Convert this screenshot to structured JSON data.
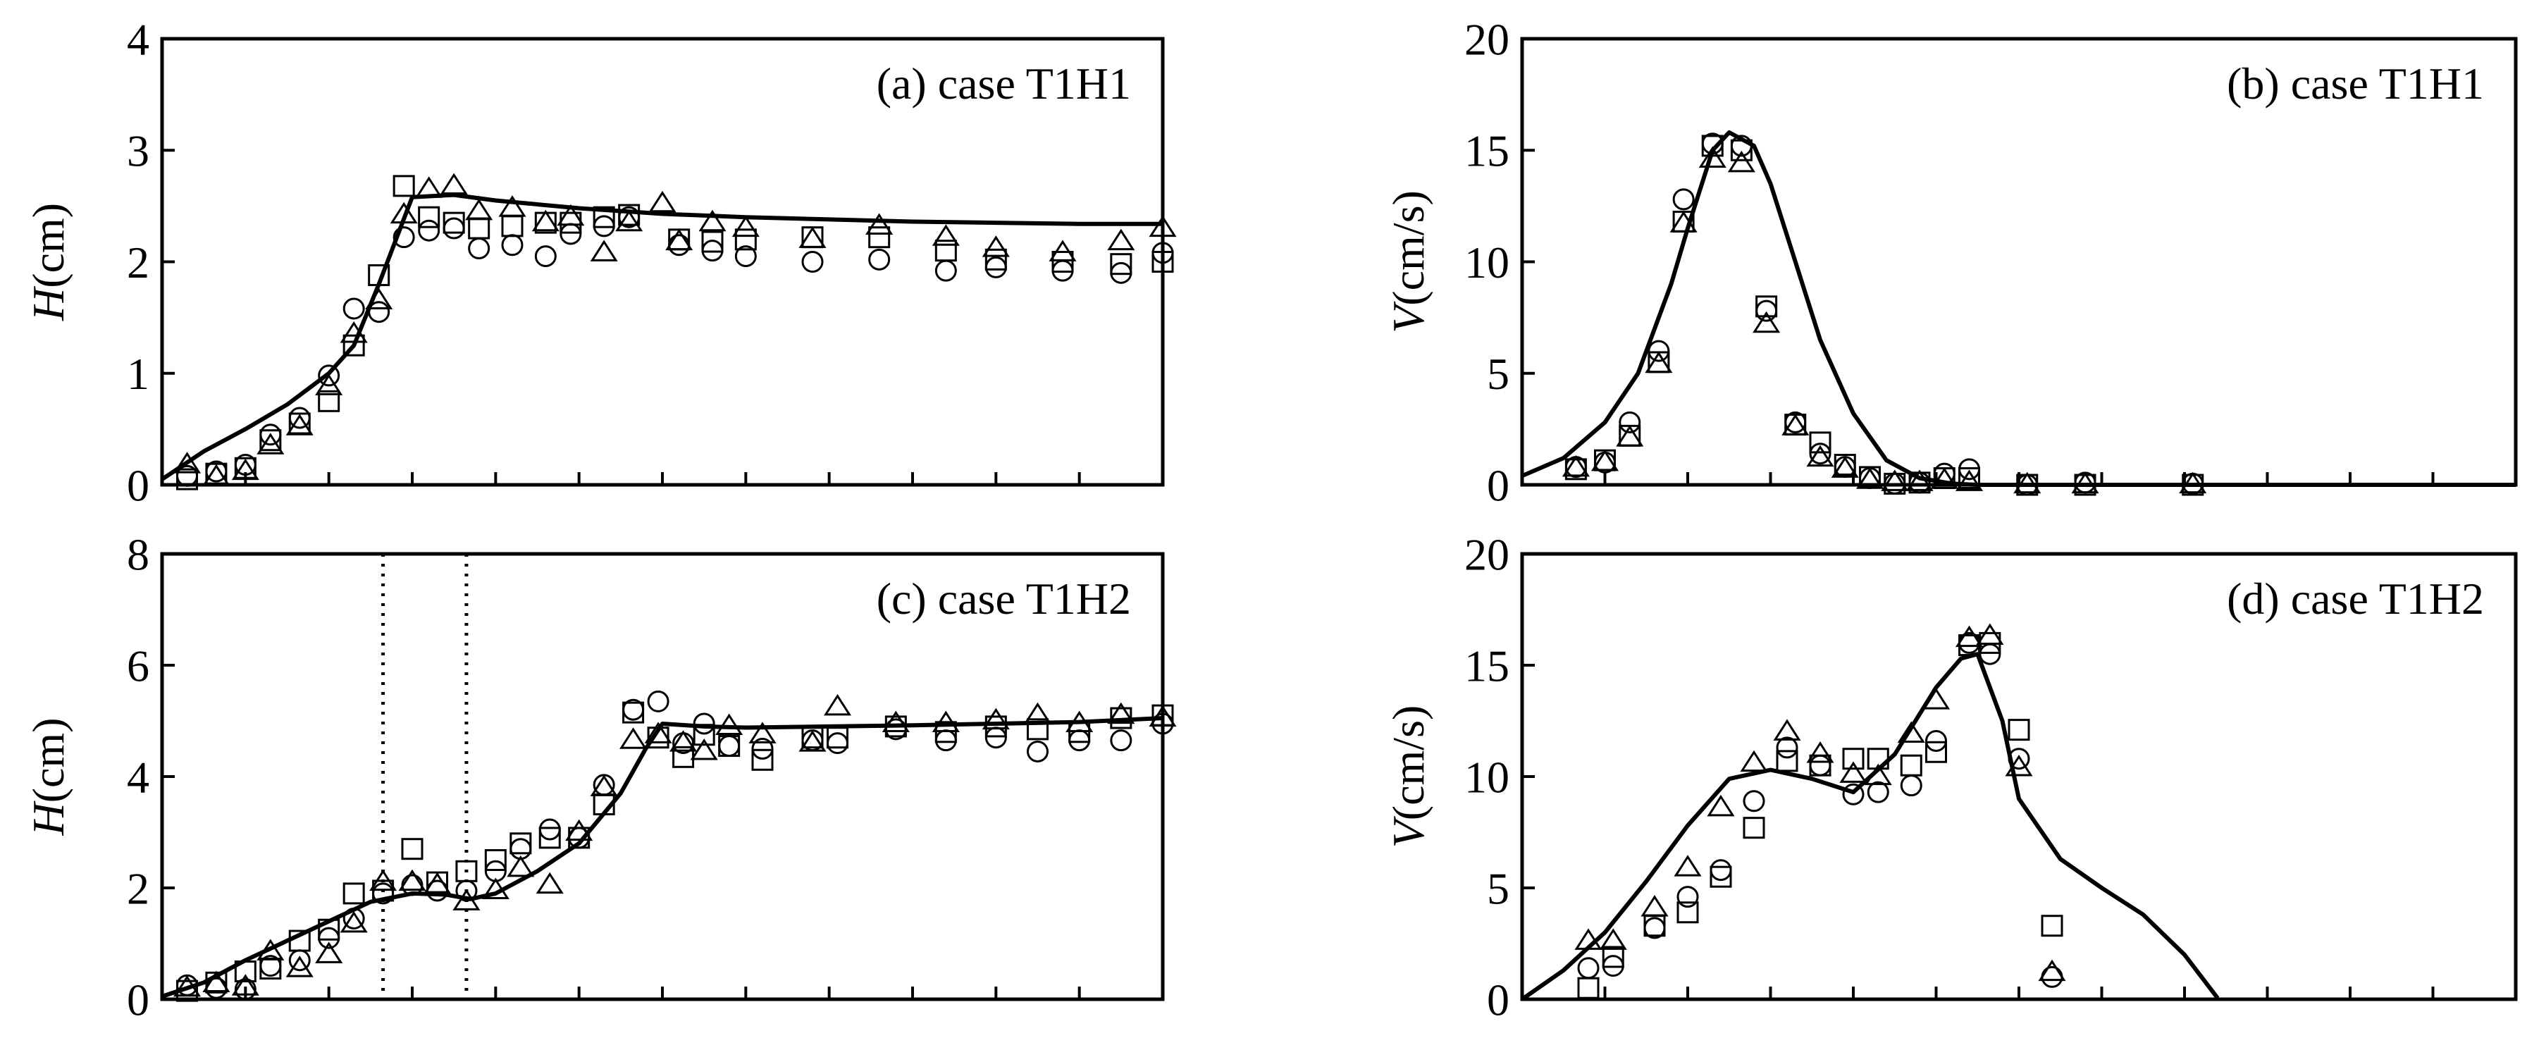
{
  "chart_data": [
    {
      "type": "scatter",
      "title": "(a) case T1H1",
      "ylabel_var": "H",
      "ylabel_unit": "(cm)",
      "xlim": [
        0,
        12
      ],
      "ylim": [
        0,
        4
      ],
      "xticks": [
        0,
        1,
        2,
        3,
        4,
        5,
        6,
        7,
        8,
        9,
        10,
        11,
        12
      ],
      "yticks": [
        0,
        1,
        2,
        3,
        4
      ],
      "ytick_labels": [
        "0",
        "1",
        "2",
        "3",
        "4"
      ],
      "grid": false,
      "series": [
        {
          "marker": "line",
          "x": [
            0,
            0.5,
            1,
            1.5,
            2,
            2.3,
            2.6,
            3.0,
            3.5,
            4,
            5,
            6,
            7,
            8,
            9,
            10,
            11,
            12
          ],
          "y": [
            0.05,
            0.3,
            0.5,
            0.72,
            1.0,
            1.25,
            1.8,
            2.58,
            2.6,
            2.55,
            2.48,
            2.43,
            2.4,
            2.38,
            2.36,
            2.35,
            2.34,
            2.34
          ]
        },
        {
          "marker": "circle",
          "x": [
            0.3,
            0.65,
            1.0,
            1.3,
            1.65,
            2.0,
            2.3,
            2.6,
            2.9,
            3.2,
            3.5,
            3.8,
            4.2,
            4.6,
            4.9,
            5.3,
            5.6,
            6.2,
            6.6,
            7.0,
            7.8,
            8.6,
            9.4,
            10.0,
            10.8,
            11.5,
            12.0
          ],
          "y": [
            0.08,
            0.12,
            0.18,
            0.45,
            0.6,
            0.98,
            1.58,
            1.55,
            2.22,
            2.28,
            2.3,
            2.12,
            2.15,
            2.05,
            2.25,
            2.32,
            2.4,
            2.15,
            2.1,
            2.05,
            2.0,
            2.02,
            1.92,
            1.95,
            1.92,
            1.9,
            2.08
          ]
        },
        {
          "marker": "square",
          "x": [
            0.3,
            0.65,
            1.0,
            1.3,
            1.65,
            2.0,
            2.3,
            2.6,
            2.9,
            3.2,
            3.5,
            3.8,
            4.2,
            4.6,
            4.9,
            5.3,
            5.6,
            6.2,
            6.6,
            7.0,
            7.8,
            8.6,
            9.4,
            10.0,
            10.8,
            11.5,
            12.0
          ],
          "y": [
            0.05,
            0.1,
            0.15,
            0.4,
            0.55,
            0.75,
            1.25,
            1.88,
            2.68,
            2.4,
            2.35,
            2.3,
            2.32,
            2.35,
            2.35,
            2.4,
            2.42,
            2.2,
            2.18,
            2.2,
            2.22,
            2.22,
            2.1,
            2.02,
            2.0,
            1.98,
            2.0
          ]
        },
        {
          "marker": "triangle",
          "x": [
            0.3,
            0.65,
            1.0,
            1.3,
            1.65,
            2.0,
            2.3,
            2.6,
            2.9,
            3.2,
            3.5,
            3.8,
            4.2,
            4.6,
            4.9,
            5.3,
            5.6,
            6.0,
            6.2,
            6.6,
            7.0,
            7.8,
            8.6,
            9.4,
            10.0,
            10.8,
            11.5,
            12.0
          ],
          "y": [
            0.18,
            0.07,
            0.12,
            0.35,
            0.52,
            0.88,
            1.35,
            1.65,
            2.42,
            2.65,
            2.68,
            2.45,
            2.48,
            2.35,
            2.4,
            2.08,
            2.35,
            2.52,
            2.18,
            2.35,
            2.3,
            2.2,
            2.32,
            2.22,
            2.12,
            2.08,
            2.18,
            2.3
          ]
        }
      ]
    },
    {
      "type": "scatter",
      "title": "(b) case T1H1",
      "ylabel_var": "V",
      "ylabel_unit": "(cm/s)",
      "xlim": [
        0,
        12
      ],
      "ylim": [
        0,
        20
      ],
      "xticks": [
        0,
        1,
        2,
        3,
        4,
        5,
        6,
        7,
        8,
        9,
        10,
        11,
        12
      ],
      "yticks": [
        0,
        5,
        10,
        15,
        20
      ],
      "ytick_labels": [
        "0",
        "5",
        "10",
        "15",
        "20"
      ],
      "grid": false,
      "series": [
        {
          "marker": "line",
          "x": [
            0,
            0.5,
            1.0,
            1.4,
            1.8,
            2.0,
            2.3,
            2.5,
            2.8,
            3.0,
            3.3,
            3.6,
            4.0,
            4.4,
            4.8,
            5.2,
            5.5,
            6.0,
            12.0
          ],
          "y": [
            0.4,
            1.2,
            2.8,
            5.0,
            9.0,
            11.5,
            15.0,
            15.8,
            15.2,
            13.5,
            10.0,
            6.5,
            3.2,
            1.1,
            0.3,
            0.05,
            0,
            0,
            0
          ]
        },
        {
          "marker": "circle",
          "x": [
            0.65,
            1.0,
            1.3,
            1.65,
            1.95,
            2.3,
            2.65,
            2.95,
            3.3,
            3.6,
            3.9,
            4.2,
            4.5,
            4.8,
            5.1,
            5.4,
            6.1,
            6.8,
            8.1
          ],
          "y": [
            0.8,
            1.0,
            2.8,
            6.0,
            12.8,
            15.3,
            15.2,
            7.8,
            2.8,
            1.4,
            0.8,
            0.3,
            0.05,
            0.1,
            0.5,
            0.7,
            0,
            0.1,
            0.05
          ]
        },
        {
          "marker": "square",
          "x": [
            0.65,
            1.0,
            1.3,
            1.65,
            1.95,
            2.3,
            2.65,
            2.95,
            3.3,
            3.6,
            3.9,
            4.2,
            4.5,
            4.8,
            5.1,
            5.4,
            6.1,
            6.8,
            8.1
          ],
          "y": [
            0.7,
            1.1,
            2.2,
            5.5,
            11.8,
            15.2,
            15.0,
            8.0,
            2.7,
            1.9,
            0.9,
            0.35,
            0.05,
            0.1,
            0.3,
            0.3,
            0,
            0,
            0
          ]
        },
        {
          "marker": "triangle",
          "x": [
            0.65,
            1.0,
            1.3,
            1.65,
            1.95,
            2.3,
            2.65,
            2.95,
            3.3,
            3.6,
            3.9,
            4.2,
            4.5,
            4.8,
            5.1,
            5.4,
            6.1,
            6.8,
            8.1
          ],
          "y": [
            0.75,
            1.0,
            2.1,
            5.4,
            11.7,
            14.6,
            14.4,
            7.2,
            2.6,
            1.2,
            0.7,
            0.2,
            0.1,
            0.1,
            0.2,
            0.1,
            0,
            0,
            0
          ]
        }
      ]
    },
    {
      "type": "scatter",
      "title": "(c) case T1H2",
      "ylabel_var": "H",
      "ylabel_unit": "(cm)",
      "xlim": [
        0,
        12
      ],
      "ylim": [
        0,
        8
      ],
      "xticks": [
        0,
        1,
        2,
        3,
        4,
        5,
        6,
        7,
        8,
        9,
        10,
        11,
        12
      ],
      "yticks": [
        0,
        2,
        4,
        6,
        8
      ],
      "ytick_labels": [
        "0",
        "2",
        "4",
        "6",
        "8"
      ],
      "grid": false,
      "vlines": [
        2.65,
        3.65
      ],
      "series": [
        {
          "marker": "line",
          "x": [
            0,
            0.5,
            1,
            1.5,
            2,
            2.5,
            3.0,
            3.4,
            3.7,
            4.0,
            4.5,
            5.0,
            5.5,
            5.8,
            6.0,
            6.5,
            7,
            8,
            9,
            10,
            11,
            12
          ],
          "y": [
            0.05,
            0.3,
            0.7,
            1.05,
            1.4,
            1.75,
            1.9,
            1.88,
            1.8,
            1.9,
            2.3,
            2.8,
            3.7,
            4.5,
            4.95,
            4.9,
            4.88,
            4.9,
            4.92,
            4.95,
            4.98,
            5.05
          ]
        },
        {
          "marker": "circle",
          "x": [
            0.3,
            0.65,
            1.0,
            1.3,
            1.65,
            2.0,
            2.3,
            2.65,
            3.0,
            3.3,
            3.65,
            4.0,
            4.3,
            4.65,
            5.0,
            5.3,
            5.65,
            5.95,
            6.25,
            6.5,
            6.8,
            7.2,
            7.8,
            8.1,
            8.8,
            9.4,
            10.0,
            10.5,
            11.0,
            11.5,
            12.0
          ],
          "y": [
            0.25,
            0.2,
            0.18,
            0.6,
            0.7,
            1.1,
            1.45,
            1.9,
            2.05,
            1.95,
            1.95,
            2.3,
            2.7,
            3.05,
            2.9,
            3.85,
            5.2,
            5.35,
            4.6,
            4.95,
            4.55,
            4.5,
            4.65,
            4.6,
            4.85,
            4.65,
            4.7,
            4.45,
            4.65,
            4.65,
            4.95
          ]
        },
        {
          "marker": "square",
          "x": [
            0.3,
            0.65,
            1.0,
            1.3,
            1.65,
            2.0,
            2.3,
            2.65,
            3.0,
            3.3,
            3.65,
            4.0,
            4.3,
            4.65,
            5.0,
            5.3,
            5.65,
            5.95,
            6.25,
            6.5,
            6.8,
            7.2,
            7.8,
            8.1,
            8.8,
            9.4,
            10.0,
            10.5,
            11.0,
            11.5,
            12.0
          ],
          "y": [
            0.15,
            0.3,
            0.5,
            0.55,
            1.05,
            1.25,
            1.9,
            1.95,
            2.7,
            2.1,
            2.3,
            2.5,
            2.8,
            2.9,
            2.9,
            3.5,
            5.15,
            4.7,
            4.35,
            4.75,
            4.55,
            4.3,
            4.7,
            4.7,
            4.9,
            4.8,
            4.9,
            4.85,
            4.8,
            5.05,
            5.1
          ]
        },
        {
          "marker": "triangle",
          "x": [
            0.3,
            0.65,
            1.0,
            1.3,
            1.65,
            2.0,
            2.3,
            2.65,
            3.0,
            3.3,
            3.65,
            4.0,
            4.3,
            4.65,
            5.0,
            5.3,
            5.65,
            5.95,
            6.25,
            6.5,
            6.8,
            7.2,
            7.8,
            8.1,
            8.8,
            9.4,
            10.0,
            10.5,
            11.0,
            11.5,
            12.0
          ],
          "y": [
            0.2,
            0.28,
            0.22,
            0.85,
            0.55,
            0.8,
            1.35,
            2.1,
            2.1,
            2.05,
            1.75,
            1.95,
            2.35,
            2.05,
            3.0,
            3.8,
            4.65,
            4.75,
            4.6,
            4.45,
            4.9,
            4.75,
            4.6,
            5.25,
            4.95,
            4.95,
            5.0,
            5.1,
            4.95,
            5.1,
            5.05
          ]
        }
      ]
    },
    {
      "type": "scatter",
      "title": "(d) case T1H2",
      "ylabel_var": "V",
      "ylabel_unit": "(cm/s)",
      "xlim": [
        0,
        12
      ],
      "ylim": [
        0,
        20
      ],
      "xticks": [
        0,
        1,
        2,
        3,
        4,
        5,
        6,
        7,
        8,
        9,
        10,
        11,
        12
      ],
      "yticks": [
        0,
        5,
        10,
        15,
        20
      ],
      "ytick_labels": [
        "0",
        "5",
        "10",
        "15",
        "20"
      ],
      "grid": false,
      "series": [
        {
          "marker": "line",
          "x": [
            0,
            0.5,
            1.0,
            1.5,
            2.0,
            2.5,
            3.0,
            3.5,
            4.0,
            4.5,
            5.0,
            5.3,
            5.5,
            5.8,
            6.0,
            6.5,
            7.0,
            7.5,
            8.0,
            8.4
          ],
          "y": [
            0,
            1.3,
            3.0,
            5.3,
            7.8,
            9.9,
            10.3,
            9.9,
            9.3,
            11.0,
            14.0,
            15.3,
            15.5,
            12.5,
            9.0,
            6.3,
            5.0,
            3.8,
            2.0,
            0.05
          ]
        },
        {
          "marker": "circle",
          "x": [
            0.8,
            1.1,
            1.6,
            2.0,
            2.4,
            2.8,
            3.2,
            3.6,
            4.0,
            4.3,
            4.7,
            5.0,
            5.4,
            5.65,
            6.0,
            6.4
          ],
          "y": [
            1.4,
            1.5,
            3.2,
            4.6,
            5.8,
            8.9,
            11.3,
            10.5,
            9.2,
            9.3,
            9.6,
            11.6,
            16.0,
            15.5,
            10.8,
            1.0
          ]
        },
        {
          "marker": "square",
          "x": [
            0.8,
            1.1,
            1.6,
            2.0,
            2.4,
            2.8,
            3.2,
            3.6,
            4.0,
            4.3,
            4.7,
            5.0,
            5.4,
            5.65,
            6.0,
            6.4
          ],
          "y": [
            0.5,
            1.9,
            3.3,
            3.9,
            5.5,
            7.7,
            10.7,
            10.5,
            10.8,
            10.8,
            10.5,
            11.1,
            15.9,
            16.0,
            12.1,
            3.3
          ]
        },
        {
          "marker": "triangle",
          "x": [
            0.8,
            1.1,
            1.6,
            2.0,
            2.4,
            2.8,
            3.2,
            3.6,
            4.0,
            4.3,
            4.7,
            5.0,
            5.4,
            5.65,
            6.0,
            6.4
          ],
          "y": [
            2.6,
            2.6,
            4.1,
            5.9,
            8.6,
            10.6,
            12.0,
            11.0,
            10.1,
            10.0,
            11.9,
            13.4,
            16.2,
            16.3,
            10.4,
            1.2
          ]
        }
      ]
    }
  ]
}
